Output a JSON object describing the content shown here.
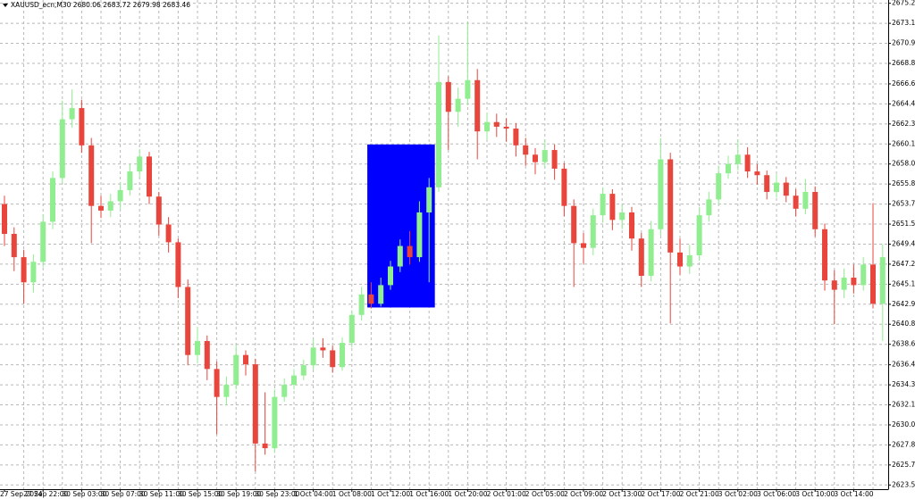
{
  "chart_data": {
    "type": "candlestick",
    "title": "XAUUSD_ecn,M30  2680.06 2683.72 2679.98 2683.46",
    "categories": [
      "27 Sep 2024",
      null,
      null,
      null,
      "27 Sep 22:00",
      null,
      null,
      null,
      "30 Sep 03:00",
      null,
      null,
      null,
      "30 Sep 07:00",
      null,
      null,
      null,
      "30 Sep 11:00",
      null,
      null,
      null,
      "30 Sep 15:00",
      null,
      null,
      null,
      "30 Sep 19:00",
      null,
      null,
      null,
      "30 Sep 23:00",
      null,
      null,
      null,
      "1 Oct 04:00",
      null,
      null,
      null,
      "1 Oct 08:00",
      null,
      null,
      null,
      "1 Oct 12:00",
      null,
      null,
      null,
      "1 Oct 16:00",
      null,
      null,
      null,
      "1 Oct 20:00",
      null,
      null,
      null,
      "2 Oct 01:00",
      null,
      null,
      null,
      "2 Oct 05:00",
      null,
      null,
      null,
      "2 Oct 09:00",
      null,
      null,
      null,
      "2 Oct 13:00",
      null,
      null,
      null,
      "2 Oct 17:00",
      null,
      null,
      null,
      "2 Oct 21:00",
      null,
      null,
      null,
      "3 Oct 02:00",
      null,
      null,
      null,
      "3 Oct 06:00",
      null,
      null,
      null,
      "3 Oct 10:00",
      null,
      null,
      null,
      "3 Oct 14:00",
      null,
      null,
      null
    ],
    "open": [
      2653.7,
      2650.5,
      2648.0,
      2645.3,
      2647.5,
      2651.8,
      2656.5,
      2662.8,
      2664.0,
      2660.0,
      2653.5,
      2653.0,
      2654.0,
      2655.2,
      2657.2,
      2658.8,
      2654.5,
      2651.5,
      2649.6,
      2644.8,
      2637.5,
      2639.0,
      2636.0,
      2633.0,
      2634.3,
      2637.5,
      2636.5,
      2628.0,
      2627.5,
      2633.0,
      2634.3,
      2635.3,
      2636.4,
      2638.3,
      2638.0,
      2636.2,
      2638.8,
      2641.8,
      2644.0,
      2643.0,
      2645.0,
      2647.0,
      2649.2,
      2648.0,
      2652.8,
      2655.5,
      2666.8,
      2663.6,
      2665.0,
      2667.0,
      2661.5,
      2662.5,
      2662.0,
      2661.8,
      2660.0,
      2659.0,
      2658.2,
      2659.5,
      2657.5,
      2653.5,
      2649.5,
      2649.0,
      2652.5,
      2654.8,
      2652.0,
      2652.8,
      2650.0,
      2646.0,
      2651.0,
      2658.5,
      2648.5,
      2647.0,
      2648.2,
      2652.5,
      2654.2,
      2657.0,
      2658.0,
      2659.0,
      2657.2,
      2656.8,
      2655.0,
      2656.0,
      2654.6,
      2653.2,
      2655.0,
      2651.0,
      2645.5,
      2644.5,
      2645.8,
      2645.0,
      2647.2,
      2643.0
    ],
    "high": [
      2654.6,
      2651.2,
      2648.8,
      2648.3,
      2652.6,
      2657.2,
      2664.8,
      2666.0,
      2664.9,
      2660.8,
      2654.6,
      2654.8,
      2656.0,
      2658.0,
      2659.6,
      2659.3,
      2655.0,
      2652.3,
      2650.0,
      2645.6,
      2640.5,
      2639.6,
      2636.8,
      2635.2,
      2638.6,
      2638.0,
      2637.1,
      2633.5,
      2633.8,
      2635.0,
      2636.0,
      2637.0,
      2639.2,
      2639.3,
      2638.5,
      2639.4,
      2642.3,
      2644.8,
      2645.3,
      2645.8,
      2647.6,
      2649.9,
      2650.8,
      2654.0,
      2656.5,
      2671.8,
      2667.4,
      2666.2,
      2673.2,
      2668.2,
      2663.5,
      2663.4,
      2662.9,
      2662.4,
      2660.8,
      2659.7,
      2660.6,
      2660.1,
      2658.1,
      2654.2,
      2650.6,
      2653.2,
      2655.5,
      2655.3,
      2653.6,
      2653.4,
      2650.6,
      2651.9,
      2660.8,
      2659.2,
      2650.0,
      2649.3,
      2653.4,
      2655.0,
      2657.8,
      2658.9,
      2660.6,
      2659.8,
      2658.0,
      2657.3,
      2656.9,
      2656.6,
      2655.3,
      2656.4,
      2655.6,
      2651.6,
      2646.6,
      2646.8,
      2647.2,
      2648.0,
      2653.8,
      2649.4
    ],
    "low": [
      2649.2,
      2646.5,
      2643.0,
      2644.2,
      2646.9,
      2651.0,
      2655.9,
      2661.9,
      2659.2,
      2649.5,
      2652.2,
      2652.3,
      2653.1,
      2654.6,
      2656.5,
      2653.7,
      2650.3,
      2648.5,
      2643.6,
      2636.4,
      2636.6,
      2634.8,
      2629.0,
      2632.1,
      2633.8,
      2635.3,
      2625.0,
      2626.8,
      2627.0,
      2632.5,
      2633.8,
      2634.8,
      2635.9,
      2637.2,
      2635.6,
      2635.8,
      2638.3,
      2641.2,
      2642.5,
      2642.7,
      2644.5,
      2646.4,
      2647.2,
      2647.5,
      2645.3,
      2655.0,
      2659.5,
      2662.0,
      2664.3,
      2658.5,
      2660.6,
      2660.9,
      2660.4,
      2658.8,
      2657.8,
      2656.9,
      2657.6,
      2656.3,
      2652.4,
      2644.8,
      2647.3,
      2648.2,
      2651.7,
      2650.9,
      2651.0,
      2648.7,
      2644.8,
      2645.4,
      2650.3,
      2640.9,
      2646.1,
      2646.2,
      2647.6,
      2651.8,
      2653.6,
      2656.4,
      2657.3,
      2656.5,
      2655.8,
      2654.2,
      2654.4,
      2653.9,
      2652.4,
      2652.6,
      2650.2,
      2644.4,
      2640.8,
      2643.6,
      2644.1,
      2644.4,
      2642.5,
      2639.0
    ],
    "close": [
      2650.5,
      2648.0,
      2645.3,
      2647.5,
      2651.8,
      2656.5,
      2662.8,
      2664.0,
      2660.0,
      2653.5,
      2653.0,
      2654.0,
      2655.2,
      2657.2,
      2658.8,
      2654.5,
      2651.5,
      2649.6,
      2644.8,
      2637.5,
      2639.0,
      2636.0,
      2633.0,
      2634.3,
      2637.5,
      2636.5,
      2628.0,
      2627.5,
      2633.0,
      2634.3,
      2635.3,
      2636.4,
      2638.3,
      2638.0,
      2636.2,
      2638.8,
      2641.8,
      2644.0,
      2643.0,
      2645.0,
      2647.0,
      2649.2,
      2648.0,
      2652.8,
      2655.5,
      2666.8,
      2663.6,
      2665.0,
      2667.0,
      2661.5,
      2662.5,
      2662.0,
      2661.8,
      2660.0,
      2659.0,
      2658.2,
      2659.5,
      2657.5,
      2653.5,
      2649.5,
      2649.0,
      2652.5,
      2654.8,
      2652.0,
      2652.8,
      2650.0,
      2646.0,
      2651.0,
      2658.5,
      2648.5,
      2647.0,
      2648.2,
      2652.5,
      2654.2,
      2657.0,
      2658.0,
      2659.0,
      2657.2,
      2656.8,
      2655.0,
      2656.0,
      2654.6,
      2653.2,
      2655.0,
      2651.0,
      2645.5,
      2644.5,
      2645.8,
      2645.0,
      2647.2,
      2643.0,
      2648.0
    ],
    "up_color": "#90ee90",
    "down_color": "#e8453c",
    "rectangle": {
      "color": "#0000ff",
      "high": 2660.1,
      "low": 2642.6
    },
    "ylim": [
      2623.1,
      2675.6
    ],
    "yticks": [
      2675.25,
      {
        "value": 2673.1,
        "label": "2673.10"
      },
      2670.95,
      {
        "value": 2668.8,
        "label": "2668.80"
      },
      {
        "value": 2666.6,
        "label": "2666.60"
      },
      2664.45,
      {
        "value": 2662.3,
        "label": "2662.30"
      },
      2660.15,
      {
        "value": 2658,
        "label": "2658.00"
      },
      2655.85,
      {
        "value": 2653.7,
        "label": "2653.70"
      },
      2651.55,
      {
        "value": 2649.4,
        "label": "2649.40"
      },
      2647.25,
      {
        "value": 2645.1,
        "label": "2645.10"
      },
      2642.95,
      {
        "value": 2640.8,
        "label": "2640.80"
      },
      2638.65,
      2636.45,
      {
        "value": 2634.3,
        "label": "2634.30"
      },
      2632.15,
      {
        "value": 2630,
        "label": "2630.00"
      },
      2627.85,
      {
        "value": 2625.7,
        "label": "2625.70"
      },
      2623.55
    ],
    "grid": true
  }
}
